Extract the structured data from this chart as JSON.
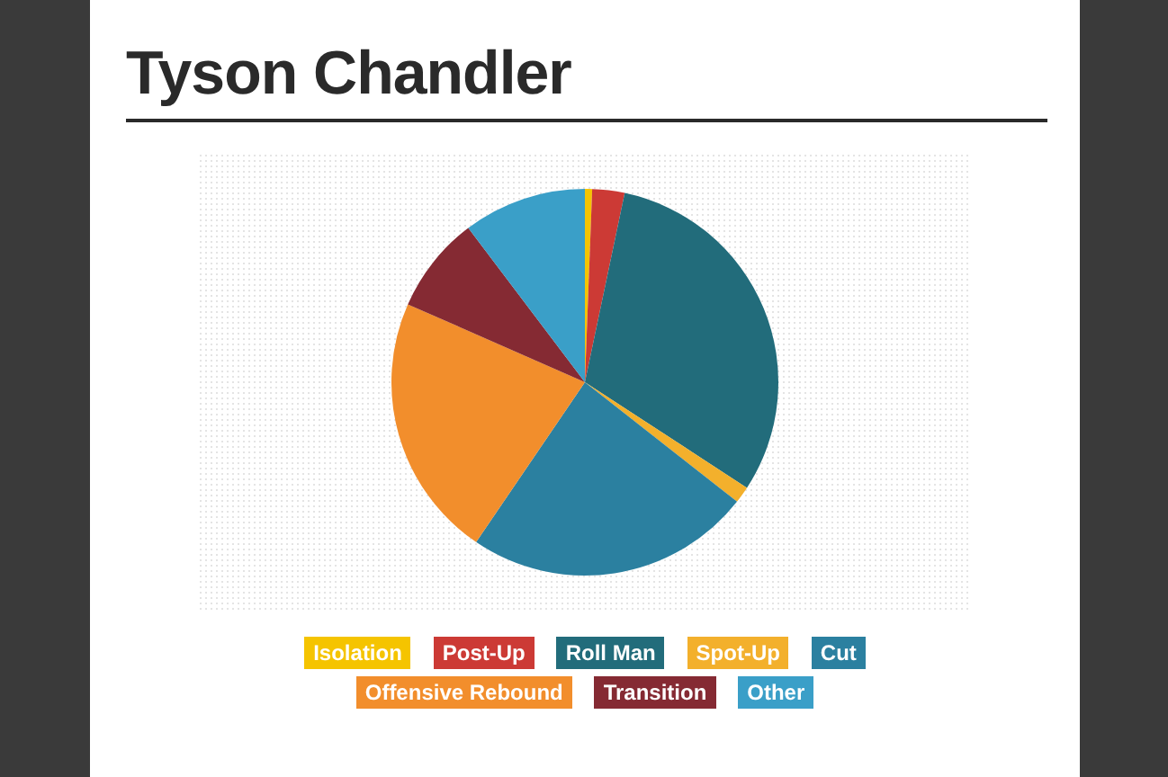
{
  "chart_data": {
    "type": "pie",
    "title": "Tyson Chandler",
    "categories": [
      "Isolation",
      "Post-Up",
      "Roll Man",
      "Spot-Up",
      "Cut",
      "Offensive Rebound",
      "Transition",
      "Other"
    ],
    "values": [
      0.6,
      2.7,
      30.9,
      1.4,
      23.9,
      22.1,
      8.1,
      10.3
    ],
    "colors": [
      "#f5c400",
      "#cc3a35",
      "#226c7b",
      "#f3b02c",
      "#2b80a0",
      "#f28e2c",
      "#852a33",
      "#3a9fc8"
    ],
    "legend": "bottom"
  }
}
